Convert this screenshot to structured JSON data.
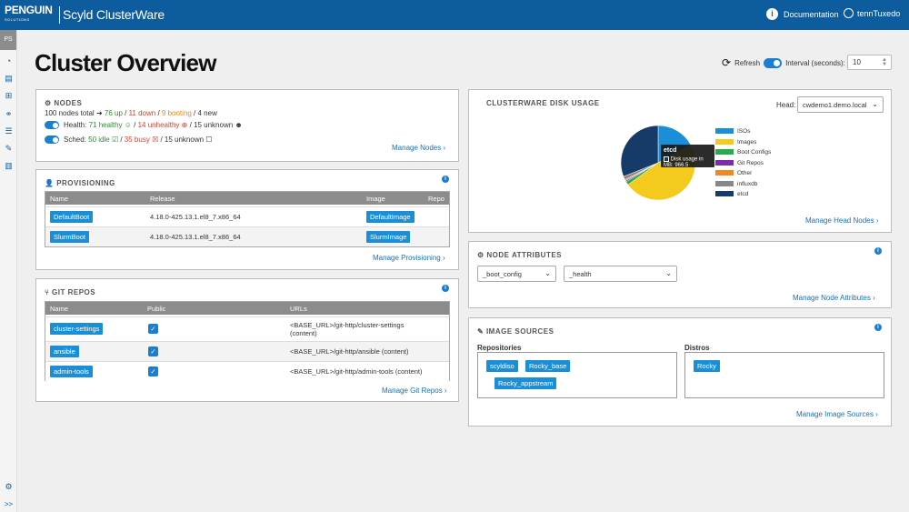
{
  "header": {
    "logo_brand": "PENGUIN",
    "logo_sub": "SOLUTIONS",
    "logo_product": "Scyld ClusterWare",
    "documentation": "Documentation",
    "user": "tennTuxedo"
  },
  "sidebar": {
    "badge": "PS",
    "expand": ">>",
    "icons": [
      "dashboard-icon",
      "nodes-icon",
      "network-icon",
      "groups-icon",
      "list-icon",
      "wrench-icon",
      "chart-icon"
    ]
  },
  "page": {
    "title": "Cluster Overview",
    "refresh_label": "Refresh",
    "interval_label": "Interval (seconds):",
    "interval_value": "10"
  },
  "nodes": {
    "title": "NODES",
    "total": "100 nodes total",
    "up": "76 up",
    "down": "11 down",
    "booting": "9 booting",
    "new": "4 new",
    "health_label": "Health:",
    "healthy": "71 healthy",
    "unhealthy": "14 unhealthy",
    "unknown": "15 unknown",
    "sched_label": "Sched:",
    "idle": "50 idle",
    "busy": "35 busy",
    "sched_unknown": "15 unknown",
    "manage": "Manage Nodes"
  },
  "provisioning": {
    "title": "PROVISIONING",
    "columns": [
      "Name",
      "Release",
      "Image",
      "Repo"
    ],
    "rows": [
      {
        "name": "DefaultBoot",
        "release": "4.18.0-425.13.1.el8_7.x86_64",
        "image": "DefaultImage"
      },
      {
        "name": "SlurmBoot",
        "release": "4.18.0-425.13.1.el8_7.x86_64",
        "image": "SlurmImage"
      }
    ],
    "manage": "Manage Provisioning"
  },
  "git_repos": {
    "title": "GIT REPOS",
    "columns": [
      "Name",
      "Public",
      "URLs"
    ],
    "rows": [
      {
        "name": "cluster-settings",
        "url": "<BASE_URL>/git-http/cluster-settings",
        "url2": "(content)"
      },
      {
        "name": "ansible",
        "url": "<BASE_URL>/git-http/ansible (content)",
        "url2": ""
      },
      {
        "name": "admin-tools",
        "url": "<BASE_URL>/git-http/admin-tools (content)",
        "url2": ""
      }
    ],
    "manage": "Manage Git Repos"
  },
  "disk_usage": {
    "title": "CLUSTERWARE DISK USAGE",
    "head_label": "Head:",
    "head_value": "cwdemo1.demo.local",
    "tooltip_title": "etcd",
    "tooltip_body": "Disk usage in MB: 966.5",
    "manage": "Manage Head Nodes",
    "colors": {
      "ISOs": "#1a8fd8",
      "Images": "#f4cb1c",
      "Boot Configs": "#2ca84f",
      "Git Repos": "#7a2fa8",
      "Other": "#f08a1e",
      "influxdb": "#888888",
      "etcd": "#163b68"
    }
  },
  "chart_data": {
    "type": "pie",
    "slices": [
      {
        "label": "ISOs",
        "value": 17
      },
      {
        "label": "Images",
        "value": 48
      },
      {
        "label": "Boot Configs",
        "value": 1.5
      },
      {
        "label": "Git Repos",
        "value": 0.5
      },
      {
        "label": "Other",
        "value": 0.5
      },
      {
        "label": "influxdb",
        "value": 1.5
      },
      {
        "label": "etcd",
        "value": 31
      }
    ],
    "legend_position": "right"
  },
  "node_attributes": {
    "title": "NODE ATTRIBUTES",
    "select1": "_boot_config",
    "select2": "_health",
    "manage": "Manage Node Attributes"
  },
  "image_sources": {
    "title": "IMAGE SOURCES",
    "repositories_label": "Repositories",
    "distros_label": "Distros",
    "repositories": [
      "scyldiso",
      "Rocky_base",
      "Rocky_appstream"
    ],
    "distros": [
      "Rocky"
    ],
    "manage": "Manage Image Sources"
  }
}
